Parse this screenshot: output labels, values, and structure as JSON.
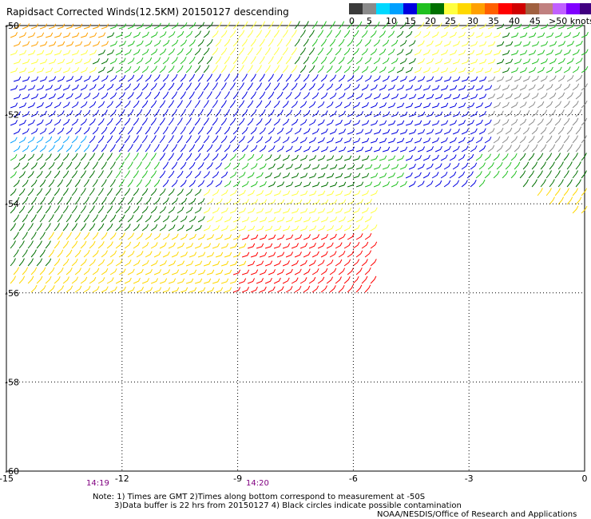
{
  "title": "Rapidsact Corrected Winds(12.5KM) 20150127 descending",
  "legend": {
    "labels": [
      "0",
      "5",
      "10",
      "15",
      "20",
      "25",
      "30",
      "35",
      "40",
      "45",
      ">50 knots"
    ],
    "colors": [
      "#3a3a3a",
      "#8a8a8a",
      "#00d8ff",
      "#00a0ff",
      "#0000e0",
      "#20c020",
      "#007000",
      "#ffff40",
      "#ffd800",
      "#ffa000",
      "#ff6000",
      "#ff0000",
      "#d00000",
      "#a06040",
      "#c08080",
      "#c060ff",
      "#8000ff",
      "#400080"
    ]
  },
  "axes": {
    "x_ticks": [
      "-15",
      "-12",
      "-9",
      "-6",
      "-3",
      "0"
    ],
    "y_ticks": [
      "-50",
      "-52",
      "-54",
      "-56",
      "-58",
      "-60"
    ]
  },
  "times": [
    "14:19",
    "14:20"
  ],
  "notes": {
    "line1": "Note: 1) Times are GMT 2)Times along bottom correspond to measurement at -50S",
    "line2": "3)Data buffer is 22 hrs from 20150127 4) Black circles indicate possible contamination",
    "credit": "NOAA/NESDIS/Office of Research and Applications"
  }
}
